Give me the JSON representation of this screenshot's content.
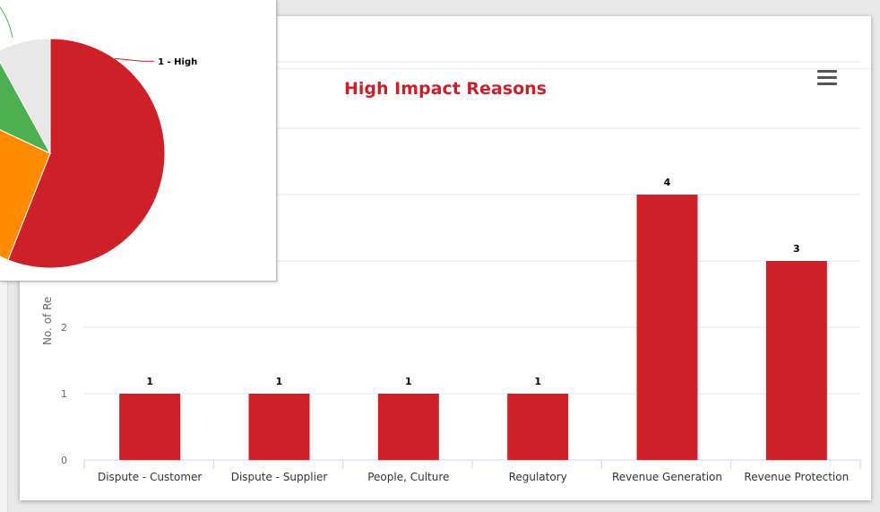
{
  "chart_data": [
    {
      "type": "bar",
      "title": "High Impact Reasons",
      "ylabel": "No. of Re",
      "xlabel": "",
      "categories": [
        "Dispute - Customer",
        "Dispute - Supplier",
        "People, Culture",
        "Regulatory",
        "Revenue Generation",
        "Revenue Protection"
      ],
      "values": [
        1,
        1,
        1,
        1,
        4,
        3
      ],
      "ylim": [
        0,
        6
      ],
      "visible_y_ticks": [
        "0",
        "1",
        "2"
      ],
      "grid": true,
      "color": "#cd2029"
    },
    {
      "type": "pie",
      "slices": [
        {
          "label": "1 - High",
          "value": 56,
          "color": "#cd2029"
        },
        {
          "label": "",
          "value": 26,
          "color": "#ff8c00"
        },
        {
          "label": "",
          "value": 10,
          "color": "#4caf50"
        },
        {
          "label": "",
          "value": 8,
          "color": "#e8e8e8"
        }
      ]
    }
  ],
  "ui": {
    "menu_icon": "hamburger-menu-icon"
  }
}
